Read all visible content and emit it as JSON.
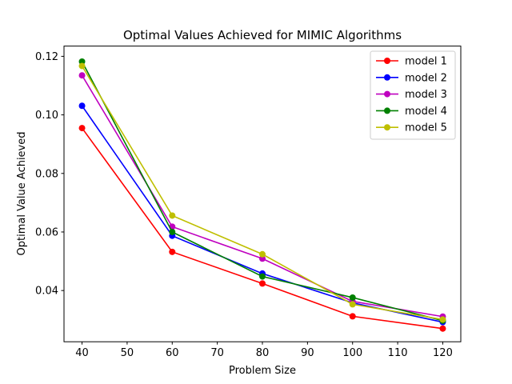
{
  "chart_data": {
    "type": "line",
    "title": "Optimal Values Achieved for MIMIC Algorithms",
    "xlabel": "Problem Size",
    "ylabel": "Optimal Value Achieved",
    "xlim": [
      36,
      124
    ],
    "ylim": [
      0.0225,
      0.1235
    ],
    "xticks": [
      40,
      50,
      60,
      70,
      80,
      90,
      100,
      110,
      120
    ],
    "yticks": [
      0.04,
      0.06,
      0.08,
      0.1,
      0.12
    ],
    "ytick_labels": [
      "0.04",
      "0.06",
      "0.08",
      "0.10",
      "0.12"
    ],
    "x": [
      40,
      60,
      80,
      100,
      120
    ],
    "grid": false,
    "legend_position": "top-right",
    "series": [
      {
        "name": "model 1",
        "color": "#ff0000",
        "values": [
          0.0955,
          0.0532,
          0.0424,
          0.0312,
          0.027
        ]
      },
      {
        "name": "model 2",
        "color": "#0000ff",
        "values": [
          0.1031,
          0.0587,
          0.0458,
          0.0358,
          0.0292
        ]
      },
      {
        "name": "model 3",
        "color": "#bf00bf",
        "values": [
          0.1135,
          0.0618,
          0.0509,
          0.0363,
          0.0311
        ]
      },
      {
        "name": "model 4",
        "color": "#008000",
        "values": [
          0.1182,
          0.06,
          0.0448,
          0.0376,
          0.0297
        ]
      },
      {
        "name": "model 5",
        "color": "#bfbf00",
        "values": [
          0.1167,
          0.0656,
          0.0524,
          0.0353,
          0.0301
        ]
      }
    ]
  }
}
